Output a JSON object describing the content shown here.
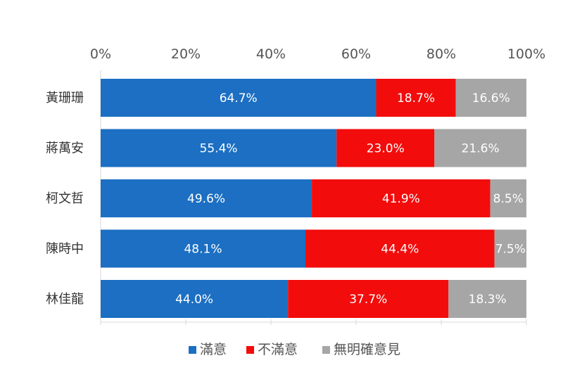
{
  "chart_data": {
    "type": "bar",
    "orientation": "horizontal",
    "stacked": true,
    "percent": true,
    "categories": [
      "黃珊珊",
      "蔣萬安",
      "柯文哲",
      "陳時中",
      "林佳龍"
    ],
    "series": [
      {
        "name": "滿意",
        "color": "#1c6fc2",
        "values": [
          64.7,
          55.4,
          49.6,
          48.1,
          44.0
        ],
        "labels": [
          "64.7%",
          "55.4%",
          "49.6%",
          "48.1%",
          "44.0%"
        ]
      },
      {
        "name": "不滿意",
        "color": "#f20c0c",
        "values": [
          18.7,
          23.0,
          41.9,
          44.4,
          37.7
        ],
        "labels": [
          "18.7%",
          "23.0%",
          "41.9%",
          "44.4%",
          "37.7%"
        ]
      },
      {
        "name": "無明確意見",
        "color": "#a6a6a6",
        "values": [
          16.6,
          21.6,
          8.5,
          7.5,
          18.3
        ],
        "labels": [
          "16.6%",
          "21.6%",
          "8.5%",
          "7.5%",
          "18.3%"
        ]
      }
    ],
    "xlim": [
      0,
      100
    ],
    "xticks": [
      0,
      20,
      40,
      60,
      80,
      100
    ],
    "xtick_labels": [
      "0%",
      "20%",
      "40%",
      "60%",
      "80%",
      "100%"
    ],
    "axis_position": "top",
    "grid": false,
    "legend_position": "bottom"
  }
}
